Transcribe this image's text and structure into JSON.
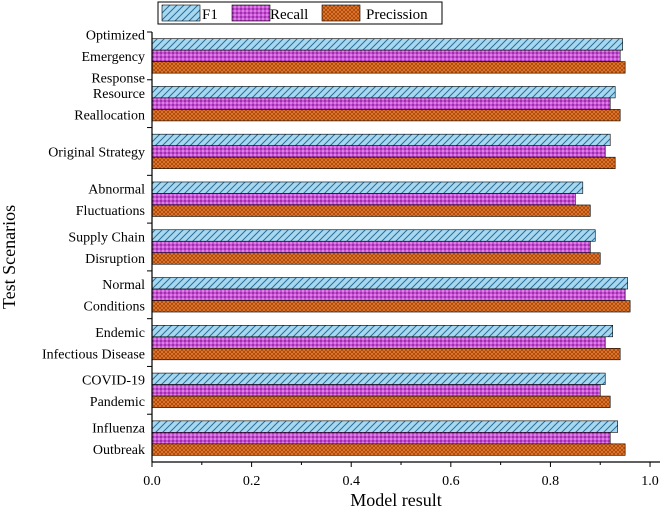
{
  "chart_data": {
    "type": "bar",
    "orientation": "horizontal",
    "title": "",
    "xlabel": "Model result",
    "ylabel": "Test Scenarios",
    "xlim": [
      0,
      1.02
    ],
    "xticks": [
      "0.0",
      "0.2",
      "0.4",
      "0.6",
      "0.8",
      "1.0"
    ],
    "xtick_values": [
      0.0,
      0.2,
      0.4,
      0.6,
      0.8,
      1.0
    ],
    "grid": false,
    "legend_position": "top",
    "categories": [
      {
        "lines": [
          "Optimized",
          "Emergency",
          "Response"
        ]
      },
      {
        "lines": [
          "Resource",
          "Reallocation"
        ]
      },
      {
        "lines": [
          "Original Strategy"
        ]
      },
      {
        "lines": [
          "Abnormal",
          "Fluctuations"
        ]
      },
      {
        "lines": [
          "Supply Chain",
          "Disruption"
        ]
      },
      {
        "lines": [
          "Normal",
          "Conditions"
        ]
      },
      {
        "lines": [
          "Endemic",
          "Infectious Disease"
        ]
      },
      {
        "lines": [
          "COVID-19",
          "Pandemic"
        ]
      },
      {
        "lines": [
          "Influenza",
          "Outbreak"
        ]
      }
    ],
    "series": [
      {
        "name": "F1",
        "color": "#a8d8f0",
        "pattern": "diagonal-hatch",
        "values": [
          0.945,
          0.93,
          0.92,
          0.865,
          0.89,
          0.955,
          0.925,
          0.91,
          0.935
        ]
      },
      {
        "name": "Recall",
        "color": "#c94fd6",
        "pattern": "dots",
        "values": [
          0.94,
          0.92,
          0.91,
          0.85,
          0.88,
          0.95,
          0.91,
          0.9,
          0.92
        ]
      },
      {
        "name": "Precission",
        "color": "#e8792a",
        "pattern": "crosshatch",
        "values": [
          0.95,
          0.94,
          0.93,
          0.88,
          0.9,
          0.96,
          0.94,
          0.92,
          0.95
        ]
      }
    ]
  }
}
